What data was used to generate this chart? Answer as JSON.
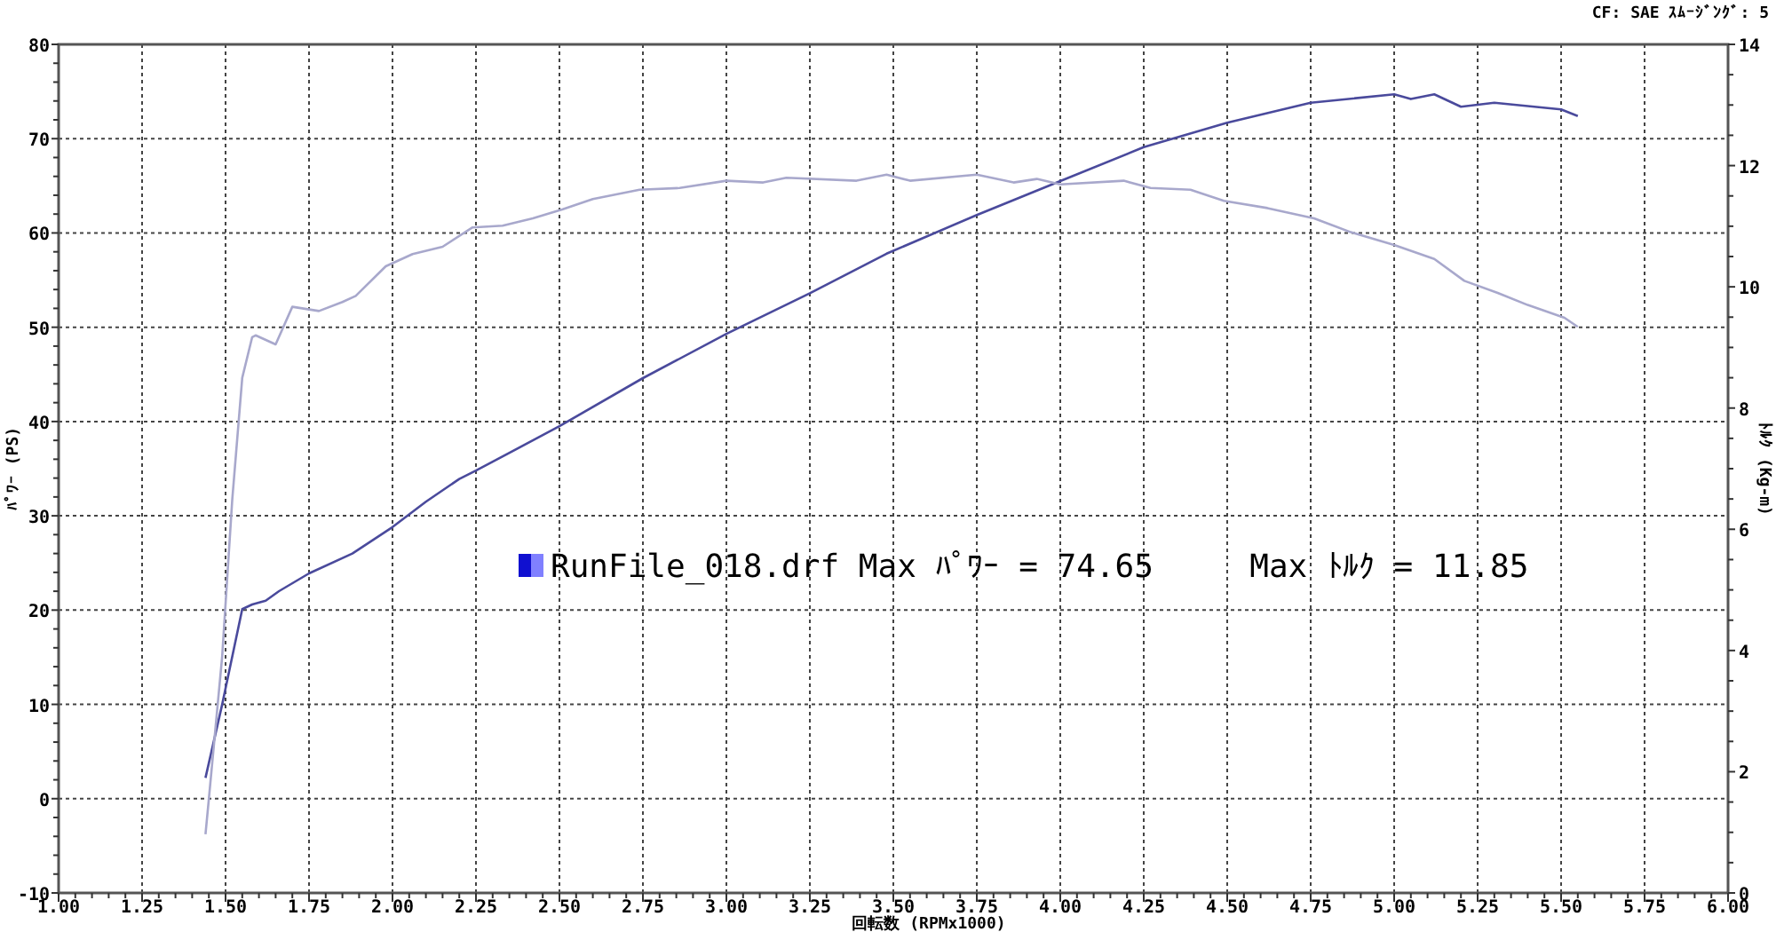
{
  "chart_data": {
    "type": "line",
    "xlabel": "回転数 (RPMx1000)",
    "ylabel": "ﾊﾟﾜｰ (PS)",
    "y2label": "ﾄﾙｸ (Kg-m)",
    "annotations": [
      "CF: SAE  ｽﾑｰｼﾞﾝｸﾞ: 5",
      "RunFile_018.drf Max ﾊﾟﾜｰ = 74.65     Max ﾄﾙｸ = 11.85"
    ],
    "xlim": [
      1.0,
      6.0
    ],
    "xticks": [
      {
        "value": 1.0,
        "label": "1.00"
      },
      {
        "value": 1.25,
        "label": "1.25"
      },
      {
        "value": 1.5,
        "label": "1.50"
      },
      {
        "value": 1.75,
        "label": "1.75"
      },
      {
        "value": 2.0,
        "label": "2.00"
      },
      {
        "value": 2.25,
        "label": "2.25"
      },
      {
        "value": 2.5,
        "label": "2.50"
      },
      {
        "value": 2.75,
        "label": "2.75"
      },
      {
        "value": 3.0,
        "label": "3.00"
      },
      {
        "value": 3.25,
        "label": "3.25"
      },
      {
        "value": 3.5,
        "label": "3.50"
      },
      {
        "value": 3.75,
        "label": "3.75"
      },
      {
        "value": 4.0,
        "label": "4.00"
      },
      {
        "value": 4.25,
        "label": "4.25"
      },
      {
        "value": 4.5,
        "label": "4.50"
      },
      {
        "value": 4.75,
        "label": "4.75"
      },
      {
        "value": 5.0,
        "label": "5.00"
      },
      {
        "value": 5.25,
        "label": "5.25"
      },
      {
        "value": 5.5,
        "label": "5.50"
      },
      {
        "value": 5.75,
        "label": "5.75"
      },
      {
        "value": 6.0,
        "label": "6.00"
      }
    ],
    "ylim": [
      -10,
      80
    ],
    "yticks": [
      -10,
      0,
      10,
      20,
      30,
      40,
      50,
      60,
      70,
      80
    ],
    "y2lim": [
      0,
      14
    ],
    "y2ticks": [
      0,
      2,
      4,
      6,
      8,
      10,
      12,
      14
    ],
    "grid": true,
    "line_style": "solid",
    "series": [
      {
        "color": "#4a4a9c",
        "x": [
          1.44,
          1.49,
          1.55,
          1.58,
          1.62,
          1.66,
          1.75,
          1.88,
          2.0,
          2.1,
          2.2,
          2.25,
          2.5,
          2.75,
          3.0,
          3.25,
          3.48,
          3.75,
          4.0,
          4.25,
          4.5,
          4.75,
          5.0,
          5.05,
          5.12,
          5.2,
          5.3,
          5.5,
          5.55
        ],
        "values": [
          2.2,
          10.0,
          20.1,
          20.6,
          21.0,
          22.0,
          23.9,
          26.0,
          28.8,
          31.5,
          33.9,
          34.8,
          39.5,
          44.6,
          49.3,
          53.6,
          57.8,
          61.9,
          65.5,
          69.1,
          71.7,
          73.8,
          74.7,
          74.2,
          74.7,
          73.4,
          73.8,
          73.1,
          72.4
        ]
      },
      {
        "axis": "y2",
        "color": "#a8a8cc",
        "x": [
          1.44,
          1.45,
          1.49,
          1.52,
          1.55,
          1.58,
          1.59,
          1.65,
          1.7,
          1.78,
          1.85,
          1.89,
          1.98,
          2.06,
          2.15,
          2.24,
          2.33,
          2.42,
          2.51,
          2.6,
          2.74,
          2.86,
          3.0,
          3.11,
          3.18,
          3.39,
          3.48,
          3.55,
          3.75,
          3.86,
          3.93,
          4.0,
          4.19,
          4.27,
          4.39,
          4.49,
          4.62,
          4.76,
          4.87,
          5.0,
          5.12,
          5.21,
          5.31,
          5.4,
          5.51,
          5.55
        ],
        "values": [
          0.97,
          1.55,
          3.9,
          6.5,
          8.5,
          9.17,
          9.2,
          9.05,
          9.67,
          9.6,
          9.75,
          9.85,
          10.34,
          10.54,
          10.66,
          10.98,
          11.01,
          11.13,
          11.28,
          11.45,
          11.6,
          11.63,
          11.75,
          11.72,
          11.8,
          11.75,
          11.85,
          11.75,
          11.85,
          11.72,
          11.78,
          11.69,
          11.75,
          11.63,
          11.6,
          11.42,
          11.3,
          11.13,
          10.9,
          10.69,
          10.46,
          10.1,
          9.9,
          9.7,
          9.49,
          9.34
        ]
      }
    ]
  }
}
